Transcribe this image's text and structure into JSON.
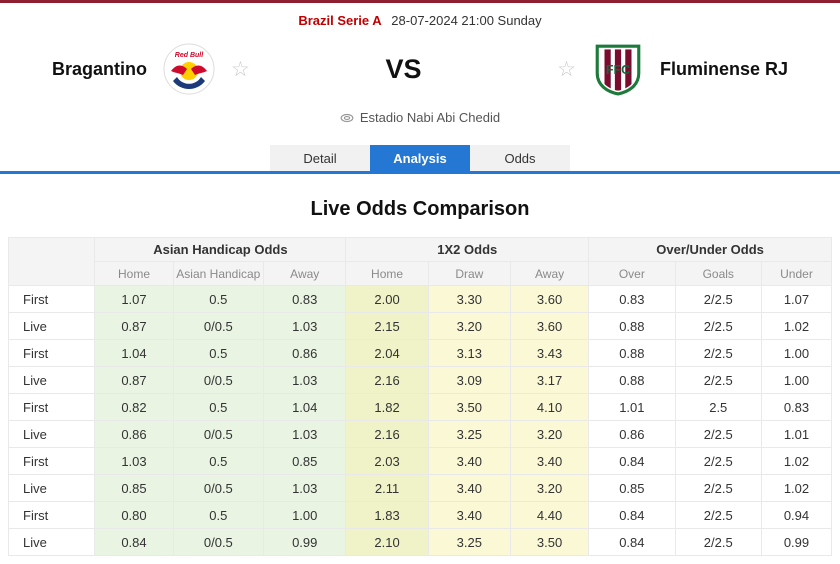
{
  "top": {
    "league": "Brazil Serie A",
    "datetime": "28-07-2024 21:00 Sunday"
  },
  "match": {
    "home_name": "Bragantino",
    "away_name": "Fluminense RJ",
    "vs_label": "VS",
    "venue": "Estadio Nabi Abi Chedid",
    "star_icon": "☆"
  },
  "tabs": {
    "detail": "Detail",
    "analysis": "Analysis",
    "odds": "Odds",
    "active_tab": "Analysis"
  },
  "section": {
    "title": "Live Odds Comparison"
  },
  "odds_table": {
    "groups": [
      "Asian Handicap Odds",
      "1X2 Odds",
      "Over/Under Odds"
    ],
    "subheaders": [
      "Home",
      "Asian Handicap",
      "Away",
      "Home",
      "Draw",
      "Away",
      "Over",
      "Goals",
      "Under"
    ],
    "rows": [
      {
        "label": "First",
        "values": [
          "1.07",
          "0.5",
          "0.83",
          "2.00",
          "3.30",
          "3.60",
          "0.83",
          "2/2.5",
          "1.07"
        ]
      },
      {
        "label": "Live",
        "values": [
          "0.87",
          "0/0.5",
          "1.03",
          "2.15",
          "3.20",
          "3.60",
          "0.88",
          "2/2.5",
          "1.02"
        ]
      },
      {
        "label": "First",
        "values": [
          "1.04",
          "0.5",
          "0.86",
          "2.04",
          "3.13",
          "3.43",
          "0.88",
          "2/2.5",
          "1.00"
        ]
      },
      {
        "label": "Live",
        "values": [
          "0.87",
          "0/0.5",
          "1.03",
          "2.16",
          "3.09",
          "3.17",
          "0.88",
          "2/2.5",
          "1.00"
        ]
      },
      {
        "label": "First",
        "values": [
          "0.82",
          "0.5",
          "1.04",
          "1.82",
          "3.50",
          "4.10",
          "1.01",
          "2.5",
          "0.83"
        ]
      },
      {
        "label": "Live",
        "values": [
          "0.86",
          "0/0.5",
          "1.03",
          "2.16",
          "3.25",
          "3.20",
          "0.86",
          "2/2.5",
          "1.01"
        ]
      },
      {
        "label": "First",
        "values": [
          "1.03",
          "0.5",
          "0.85",
          "2.03",
          "3.40",
          "3.40",
          "0.84",
          "2/2.5",
          "1.02"
        ]
      },
      {
        "label": "Live",
        "values": [
          "0.85",
          "0/0.5",
          "1.03",
          "2.11",
          "3.40",
          "3.20",
          "0.85",
          "2/2.5",
          "1.02"
        ]
      },
      {
        "label": "First",
        "values": [
          "0.80",
          "0.5",
          "1.00",
          "1.83",
          "3.40",
          "4.40",
          "0.84",
          "2/2.5",
          "0.94"
        ]
      },
      {
        "label": "Live",
        "values": [
          "0.84",
          "0/0.5",
          "0.99",
          "2.10",
          "3.25",
          "3.50",
          "0.84",
          "2/2.5",
          "0.99"
        ]
      }
    ]
  },
  "colors": {
    "accent_blue": "#2478d4",
    "league_red": "#c00000",
    "green_bg": "#e9f4e3",
    "yellow_home_bg": "#f0f3c8",
    "yellow_bg": "#fbf8d6",
    "top_strip": "#8e1f2f"
  }
}
